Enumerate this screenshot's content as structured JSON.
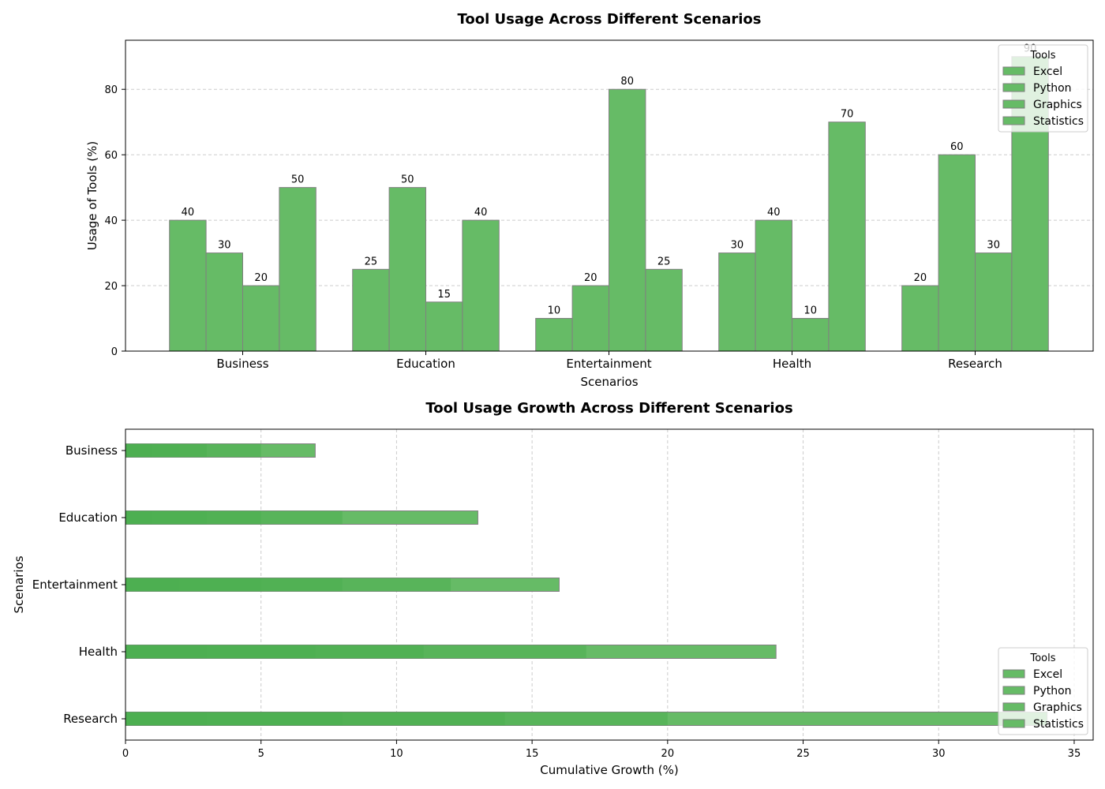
{
  "colors": {
    "bar_fill": "#66bb66",
    "bar_edge": "#808080",
    "grid": "#cccccc",
    "text": "#000000",
    "cumulative_layer": "#4caf50"
  },
  "chart_data": [
    {
      "type": "bar",
      "title": "Tool Usage Across Different Scenarios",
      "xlabel": "Scenarios",
      "ylabel": "Usage of Tools (%)",
      "categories": [
        "Business",
        "Education",
        "Entertainment",
        "Health",
        "Research"
      ],
      "series": [
        {
          "name": "Excel",
          "values": [
            40,
            25,
            10,
            30,
            20
          ]
        },
        {
          "name": "Python",
          "values": [
            30,
            50,
            20,
            40,
            60
          ]
        },
        {
          "name": "Graphics",
          "values": [
            20,
            15,
            80,
            10,
            30
          ]
        },
        {
          "name": "Statistics",
          "values": [
            50,
            40,
            25,
            70,
            90
          ]
        }
      ],
      "ylim": [
        0,
        95
      ],
      "yticks": [
        0,
        20,
        40,
        60,
        80
      ],
      "grid": "y-dashed",
      "legend": {
        "title": "Tools",
        "placement": "top-right"
      }
    },
    {
      "type": "bar",
      "orientation": "horizontal",
      "stacked": "cumulative-overlay",
      "title": "Tool Usage Growth Across Different Scenarios",
      "xlabel": "Cumulative Growth (%)",
      "ylabel": "Scenarios",
      "categories": [
        "Business",
        "Education",
        "Entertainment",
        "Health",
        "Research"
      ],
      "series": [
        {
          "name": "Excel",
          "values": [
            1,
            1,
            2,
            3,
            3
          ]
        },
        {
          "name": "Python",
          "values": [
            1,
            2,
            3,
            4,
            5
          ]
        },
        {
          "name": "Graphics",
          "values": [
            1,
            2,
            3,
            4,
            6
          ]
        },
        {
          "name": "Statistics",
          "values": [
            2,
            3,
            4,
            6,
            6
          ]
        }
      ],
      "cumulative_totals": [
        [
          1,
          2,
          3,
          5
        ],
        [
          1,
          3,
          5,
          8
        ],
        [
          2,
          5,
          8,
          12
        ],
        [
          3,
          7,
          11,
          17
        ],
        [
          3,
          8,
          14,
          20
        ]
      ],
      "visible_bar_ends": [
        7,
        13,
        16,
        24,
        34
      ],
      "xlim": [
        0,
        35.7
      ],
      "xticks": [
        0,
        5,
        10,
        15,
        20,
        25,
        30,
        35
      ],
      "grid": "x-dashed",
      "legend": {
        "title": "Tools",
        "placement": "bottom-right"
      }
    }
  ]
}
